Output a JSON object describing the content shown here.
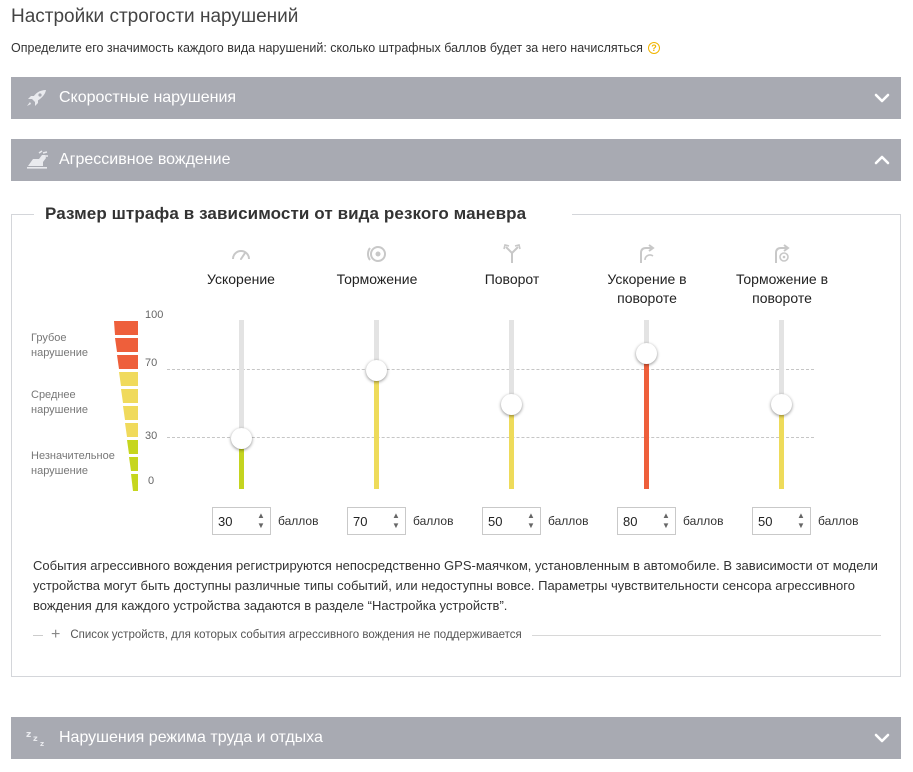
{
  "page": {
    "title": "Настройки строгости нарушений",
    "subtitle": "Определите его значимость каждого вида нарушений: сколько штрафных баллов будет за него начисляться",
    "help_icon": "question-circle-icon"
  },
  "sections": {
    "speed": {
      "label": "Скоростные нарушения",
      "icon": "rocket-icon",
      "expanded": false
    },
    "aggressive": {
      "label": "Агрессивное вождение",
      "icon": "aggressive-driving-icon",
      "expanded": true
    },
    "rest": {
      "label": "Нарушения режима труда и отдыха",
      "icon": "sleep-icon",
      "expanded": false
    }
  },
  "aggressive_panel": {
    "fieldset_title": "Размер штрафа в зависимости от вида резкого маневра",
    "scale": {
      "ticks": [
        "100",
        "70",
        "30",
        "0"
      ],
      "levels": [
        {
          "label": "Грубое нарушение",
          "color": "#ee5f3b"
        },
        {
          "label": "Среднее нарушение",
          "color": "#f0da5c"
        },
        {
          "label": "Незначительное нарушение",
          "color": "#c6d61e"
        }
      ]
    },
    "sliders": [
      {
        "label": "Ускорение",
        "icon": "speedometer-icon",
        "value": 30,
        "unit": "баллов",
        "color": "#c4d420"
      },
      {
        "label": "Торможение",
        "icon": "brake-icon",
        "value": 70,
        "unit": "баллов",
        "color": "#eedb5a"
      },
      {
        "label": "Поворот",
        "icon": "turn-icon",
        "value": 50,
        "unit": "баллов",
        "color": "#eedb5a"
      },
      {
        "label": "Ускорение в повороте",
        "icon": "turn-acceleration-icon",
        "value": 80,
        "unit": "баллов",
        "color": "#ee5f3b"
      },
      {
        "label": "Торможение в повороте",
        "icon": "turn-brake-icon",
        "value": 50,
        "unit": "баллов",
        "color": "#eedb5a"
      }
    ],
    "info_text": "События агрессивного вождения регистрируются непосредственно GPS-маячком, установленным в автомобиле. В зависимости от модели устройства могут быть доступны различные типы событий, или недоступны вовсе. Параметры чувствительности сенсора агрессивного вождения для каждого устройства задаются в разделе “Настройка устройств”.",
    "expander_label": "Список устройств, для которых события агрессивного вождения не поддерживается"
  }
}
